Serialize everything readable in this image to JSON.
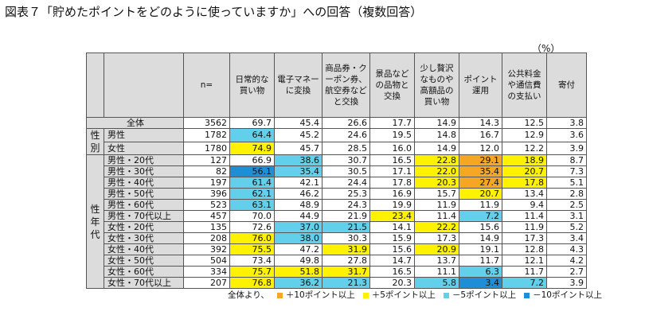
{
  "title": "図表７「貯めたポイントをどのように使っていますか」への回答（複数回答）",
  "unit": "（%）",
  "colors": {
    "plus10": "#f5a623",
    "plus5": "#fff200",
    "minus5": "#62d0ea",
    "minus10": "#1e8fd6",
    "header_bg": "#dcdcdc"
  },
  "legend": {
    "prefix": "全体より、",
    "items": [
      {
        "key": "plus10",
        "label": "＋10ポイント以上"
      },
      {
        "key": "plus5",
        "label": "＋5ポイント以上"
      },
      {
        "key": "minus5",
        "label": "－5ポイント以上"
      },
      {
        "key": "minus10",
        "label": "－10ポイント以上"
      }
    ]
  },
  "chart_data": {
    "type": "table",
    "columns": [
      "n=",
      "日常的な買い物",
      "電子マネーに変換",
      "商品券・クーポン券、航空券などと交換",
      "景品などの品物と交換",
      "少し贅沢なものや高額品の買い物",
      "ポイント運用",
      "公共料金や通信費の支払い",
      "寄付"
    ],
    "groups": [
      {
        "label": "",
        "rows": [
          {
            "label": "全体",
            "values": [
              3562,
              69.7,
              45.4,
              26.6,
              17.7,
              14.9,
              14.3,
              12.5,
              3.8
            ],
            "hl": [
              "",
              "",
              "",
              "",
              "",
              "",
              "",
              "",
              ""
            ]
          }
        ]
      },
      {
        "label": "性別",
        "rows": [
          {
            "label": "男性",
            "values": [
              1782,
              64.4,
              45.2,
              24.6,
              19.5,
              14.8,
              16.7,
              12.9,
              3.6
            ],
            "hl": [
              "",
              "minus5",
              "",
              "",
              "",
              "",
              "",
              "",
              ""
            ]
          },
          {
            "label": "女性",
            "values": [
              1780,
              74.9,
              45.7,
              28.5,
              16.0,
              14.9,
              12.0,
              12.2,
              3.9
            ],
            "hl": [
              "",
              "plus5",
              "",
              "",
              "",
              "",
              "",
              "",
              ""
            ]
          }
        ]
      },
      {
        "label": "性年代",
        "rows": [
          {
            "label": "男性・20代",
            "values": [
              127,
              66.9,
              38.6,
              30.7,
              16.5,
              22.8,
              29.1,
              18.9,
              8.7
            ],
            "hl": [
              "",
              "",
              "minus5",
              "",
              "",
              "plus5",
              "plus10",
              "plus5",
              ""
            ]
          },
          {
            "label": "男性・30代",
            "values": [
              82,
              56.1,
              35.4,
              30.5,
              17.1,
              22.0,
              35.4,
              20.7,
              7.3
            ],
            "hl": [
              "",
              "minus10",
              "minus5",
              "",
              "",
              "plus5",
              "plus10",
              "plus5",
              ""
            ]
          },
          {
            "label": "男性・40代",
            "values": [
              197,
              61.4,
              42.1,
              24.4,
              17.8,
              20.3,
              27.4,
              17.8,
              5.1
            ],
            "hl": [
              "",
              "minus5",
              "",
              "",
              "",
              "plus5",
              "plus10",
              "plus5",
              ""
            ]
          },
          {
            "label": "男性・50代",
            "values": [
              396,
              62.1,
              46.2,
              25.3,
              16.9,
              15.7,
              20.7,
              13.4,
              2.8
            ],
            "hl": [
              "",
              "minus5",
              "",
              "",
              "",
              "",
              "plus5",
              "",
              ""
            ]
          },
          {
            "label": "男性・60代",
            "values": [
              523,
              63.1,
              48.9,
              24.3,
              19.9,
              11.9,
              11.9,
              9.4,
              2.5
            ],
            "hl": [
              "",
              "minus5",
              "",
              "",
              "",
              "",
              "",
              "",
              ""
            ]
          },
          {
            "label": "男性・70代以上",
            "values": [
              457,
              70.0,
              44.9,
              21.9,
              23.4,
              11.4,
              7.2,
              11.4,
              3.1
            ],
            "hl": [
              "",
              "",
              "",
              "",
              "plus5",
              "",
              "minus5",
              "",
              ""
            ]
          },
          {
            "label": "女性・20代",
            "values": [
              135,
              72.6,
              37.0,
              21.5,
              14.1,
              22.2,
              15.6,
              11.9,
              5.2
            ],
            "hl": [
              "",
              "",
              "minus5",
              "minus5",
              "",
              "plus5",
              "",
              "",
              ""
            ]
          },
          {
            "label": "女性・30代",
            "values": [
              208,
              76.0,
              38.0,
              30.3,
              15.9,
              17.3,
              14.9,
              17.3,
              3.4
            ],
            "hl": [
              "",
              "plus5",
              "minus5",
              "",
              "",
              "",
              "",
              "",
              ""
            ]
          },
          {
            "label": "女性・40代",
            "values": [
              392,
              75.5,
              47.2,
              31.9,
              15.6,
              20.9,
              19.1,
              12.8,
              4.3
            ],
            "hl": [
              "",
              "plus5",
              "",
              "plus5",
              "",
              "plus5",
              "",
              "",
              ""
            ]
          },
          {
            "label": "女性・50代",
            "values": [
              504,
              73.4,
              49.8,
              27.8,
              14.7,
              13.7,
              11.7,
              12.1,
              4.2
            ],
            "hl": [
              "",
              "",
              "",
              "",
              "",
              "",
              "",
              "",
              ""
            ]
          },
          {
            "label": "女性・60代",
            "values": [
              334,
              75.7,
              51.8,
              31.7,
              16.5,
              11.1,
              6.3,
              11.7,
              2.7
            ],
            "hl": [
              "",
              "plus5",
              "plus5",
              "plus5",
              "",
              "",
              "minus5",
              "",
              ""
            ]
          },
          {
            "label": "女性・70代以上",
            "values": [
              207,
              76.8,
              36.2,
              21.3,
              20.3,
              5.8,
              3.4,
              7.2,
              3.9
            ],
            "hl": [
              "",
              "plus5",
              "minus5",
              "minus5",
              "",
              "minus5",
              "minus10",
              "minus5",
              ""
            ]
          }
        ]
      }
    ]
  }
}
